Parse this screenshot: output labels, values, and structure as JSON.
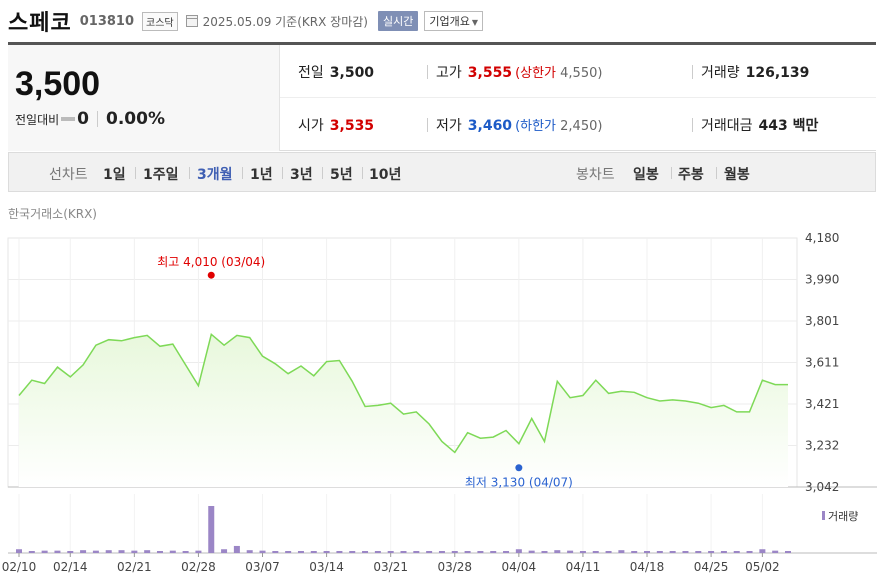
{
  "header": {
    "name": "스페코",
    "code": "013810",
    "market": "코스닥",
    "date": "2025.05.09 기준(KRX 장마감)",
    "realtime": "실시간",
    "summary": "기업개요"
  },
  "price": {
    "current": "3,500",
    "change_label": "전일대비",
    "change_value": "0",
    "change_pct": "0.00%"
  },
  "stats": {
    "prev_label": "전일",
    "prev_value": "3,500",
    "high_label": "고가",
    "high_value": "3,555",
    "upper_label": "(상한가",
    "upper_value": "4,550",
    "upper_close": ")",
    "volume_label": "거래량",
    "volume_value": "126,139",
    "open_label": "시가",
    "open_value": "3,535",
    "low_label": "저가",
    "low_value": "3,460",
    "lower_label": "(하한가",
    "lower_value": "2,450",
    "lower_close": ")",
    "amount_label": "거래대금",
    "amount_value": "443 백만"
  },
  "toolbar": {
    "line_label": "선차트",
    "line_tabs": [
      "1일",
      "1주일",
      "3개월",
      "1년",
      "3년",
      "5년",
      "10년"
    ],
    "active_tab": "3개월",
    "candle_label": "봉차트",
    "candle_tabs": [
      "일봉",
      "주봉",
      "월봉"
    ]
  },
  "exchange_label": "한국거래소(KRX)",
  "chart_data": {
    "type": "area",
    "y_ticks": [
      "4,180",
      "3,990",
      "3,801",
      "3,611",
      "3,421",
      "3,232",
      "3,042"
    ],
    "ylim": [
      3042,
      4180
    ],
    "x_labels": [
      "02/10",
      "02/14",
      "02/21",
      "02/28",
      "03/07",
      "03/14",
      "03/21",
      "03/28",
      "04/04",
      "04/11",
      "04/18",
      "04/25",
      "05/02"
    ],
    "x_label_index": [
      0,
      4,
      9,
      14,
      19,
      24,
      29,
      34,
      39,
      44,
      49,
      54,
      58
    ],
    "values": [
      3460,
      3530,
      3515,
      3590,
      3545,
      3600,
      3690,
      3715,
      3710,
      3725,
      3735,
      3685,
      3695,
      3600,
      3505,
      3740,
      3690,
      3735,
      3725,
      3640,
      3605,
      3560,
      3595,
      3550,
      3615,
      3620,
      3525,
      3410,
      3415,
      3425,
      3375,
      3385,
      3330,
      3250,
      3200,
      3290,
      3265,
      3270,
      3300,
      3240,
      3355,
      3250,
      3525,
      3450,
      3460,
      3530,
      3470,
      3480,
      3475,
      3450,
      3435,
      3440,
      3435,
      3425,
      3405,
      3415,
      3385,
      3385,
      3530,
      3510,
      3510
    ],
    "high_annotation": "최고 4,010 (03/04)",
    "high": {
      "index": 15,
      "value": 4010
    },
    "low_annotation": "최저 3,130 (04/07)",
    "low": {
      "index": 39,
      "value": 3130
    },
    "volume_label": "거래량",
    "volume_max": 1.0,
    "volumes": [
      0.08,
      0.04,
      0.05,
      0.05,
      0.04,
      0.06,
      0.05,
      0.06,
      0.06,
      0.05,
      0.06,
      0.04,
      0.05,
      0.04,
      0.05,
      1.0,
      0.08,
      0.15,
      0.06,
      0.05,
      0.04,
      0.04,
      0.03,
      0.04,
      0.03,
      0.03,
      0.03,
      0.03,
      0.02,
      0.03,
      0.03,
      0.02,
      0.02,
      0.03,
      0.02,
      0.03,
      0.03,
      0.04,
      0.03,
      0.08,
      0.05,
      0.04,
      0.06,
      0.05,
      0.04,
      0.03,
      0.04,
      0.06,
      0.03,
      0.03,
      0.02,
      0.03,
      0.04,
      0.03,
      0.04,
      0.02,
      0.03,
      0.02,
      0.08,
      0.05,
      0.04
    ],
    "line_color": "#7ed957",
    "fill_color": "#e8f8dc",
    "volume_color": "#9b86c6",
    "high_color": "#e00000",
    "low_color": "#2b63d0"
  }
}
